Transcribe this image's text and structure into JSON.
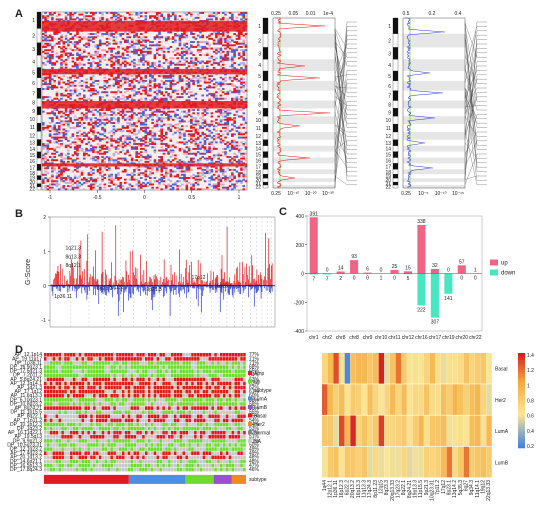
{
  "panels": {
    "A": "A",
    "B": "B",
    "C": "C",
    "D": "D"
  },
  "colors": {
    "amp": "#e31a1c",
    "del": "#2f3fd1",
    "up": "#f06585",
    "down": "#45e8c0",
    "green": "#6edc2f",
    "gray": "#c8c8c8"
  },
  "panelA": {
    "chromosomes": [
      "1",
      "2",
      "3",
      "4",
      "5",
      "6",
      "7",
      "8",
      "9",
      "10",
      "11",
      "12",
      "13",
      "14",
      "15",
      "16",
      "17",
      "18",
      "19",
      "20",
      "21",
      "22"
    ],
    "heatmap_ticks": [
      "-1",
      "-0.5",
      "0",
      "0.5",
      "1"
    ],
    "amp_top_ticks": [
      "0.25",
      "0.05",
      "0.01",
      "1e-4"
    ],
    "amp_bottom_ticks": [
      "0.25",
      "10⁻¹⁰",
      "10⁻²⁰",
      "10⁻³⁰"
    ],
    "del_top_ticks": [
      "0.5",
      "0.2",
      "0.4"
    ],
    "del_bottom_ticks": [
      "0.25",
      "10⁻⁵",
      "10⁻¹⁰",
      "10⁻¹⁵"
    ]
  },
  "chart_data": [
    {
      "type": "bar",
      "title": "",
      "ylabel": "G-Score",
      "xlabel": "",
      "ylim": [
        -1.2,
        2.0
      ],
      "annotations": [
        "1q21.3",
        "8q13.3",
        "8q12.1",
        "1p36.11",
        "7p11.2",
        "17q12",
        "9p21.3",
        "16q23.1",
        "8p23.2"
      ]
    },
    {
      "type": "bar",
      "categories": [
        "chr1",
        "chr2",
        "chr8",
        "chr8",
        "chr9",
        "chr10",
        "chr11",
        "chr12",
        "chr16",
        "chr17",
        "chr19",
        "chr20",
        "chr22"
      ],
      "series": [
        {
          "name": "up",
          "values": [
            391,
            0,
            14,
            93,
            6,
            0,
            25,
            15,
            338,
            32,
            0,
            57,
            1
          ]
        },
        {
          "name": "down",
          "values": [
            7,
            7,
            2,
            0,
            0,
            1,
            0,
            5,
            222,
            307,
            141,
            0,
            0
          ]
        }
      ],
      "ylim": [
        -400,
        400
      ],
      "legend": "right"
    },
    {
      "type": "heatmap",
      "title": "",
      "rows": [
        "Basal",
        "Her2",
        "LumA",
        "LumB"
      ],
      "colorbar_ticks": [
        "1.4",
        "1.2",
        "1",
        "0.8",
        "0.6",
        "0.4",
        "0.2"
      ],
      "columns": [
        "1q44",
        "12p12.1",
        "1p36.11",
        "16p12.3",
        "6p22.2",
        "20q13.2",
        "16p13.3",
        "11q13.3",
        "17q24.3",
        "8p11.23",
        "12q15",
        "8q23.3",
        "20q13.33",
        "17q23.2",
        "8q22.1",
        "8q24.21",
        "19p13.3",
        "11p15.5",
        "9p21.3",
        "10q23.31",
        "7p11.2",
        "17q12",
        "8p23.1",
        "13q14.2",
        "5q35.3",
        "6q27",
        "9q34.3",
        "11q14.1",
        "19q12",
        "22q13.33"
      ]
    }
  ],
  "panelC_legend": {
    "up": "up",
    "down": "down"
  },
  "panelD": {
    "row_labels": [
      "AP_12.1p14",
      "AP_19.11q17",
      "DP_1p36.11",
      "DP_16.9q23.1",
      "DP_17.5q21.3",
      "DP_7.2p11.2",
      "AP_5.8q24.21",
      "AP_12.1q14.1",
      "AP_1q21.3",
      "AP_17.1q12",
      "AP_11.6q13.3",
      "DP_6.10q23.1",
      "DP_10.8p23.2",
      "AP_8q24.21",
      "DP_11.1p15.5",
      "AP_8q22.1",
      "AP_7.1p11.2",
      "DP_10.1p12.3",
      "DP_1q23.2",
      "AP_16.11q22.1",
      "AP_19.5q13",
      "DP_9.9p21.3",
      "DP_10.5q23.31",
      "DP_12.1q23.2",
      "AP_17.4q23.2",
      "AP_20.1q13.2",
      "DP_14.6p21.1",
      "DP_16.5p13.3",
      "DP_17.8q24.3"
    ],
    "percentages": [
      "77%",
      "71%",
      "71%",
      "68%",
      "65%",
      "64%",
      "63%",
      "63%",
      "62%",
      "61%",
      "60%",
      "58%",
      "58%",
      "56%",
      "55%",
      "55%",
      "54%",
      "54%",
      "53%",
      "52%",
      "51%",
      "51%",
      "50%",
      "49%",
      "49%",
      "48%",
      "48%",
      "47%",
      "46%"
    ],
    "legend": [
      "Amp",
      "Un",
      "subtype",
      "LumA",
      "LumB",
      "Basal",
      "Her2",
      "Normal",
      "NA"
    ],
    "subtype_label": "subtype"
  }
}
